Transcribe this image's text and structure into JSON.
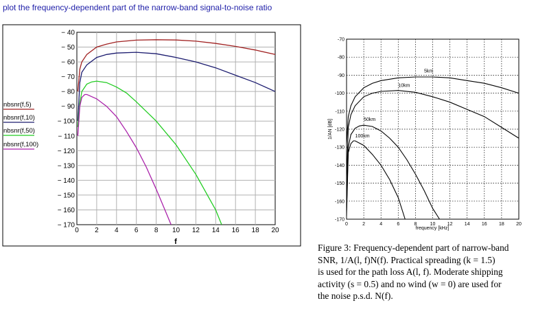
{
  "heading": "plot the frequency-dependent part of the narrow-band signal-to-noise ratio",
  "chart_data": [
    {
      "type": "line",
      "title": "",
      "xlabel": "f",
      "ylabel": "",
      "xlim": [
        0,
        20
      ],
      "ylim": [
        -170,
        -40
      ],
      "xticks": [
        0,
        2,
        4,
        6,
        8,
        10,
        12,
        14,
        16,
        18,
        20
      ],
      "yticks": [
        -40,
        -50,
        -60,
        -70,
        -80,
        -90,
        -100,
        -110,
        -120,
        -130,
        -140,
        -150,
        -160,
        -170
      ],
      "grid": true,
      "legend_position": "left",
      "series": [
        {
          "name": "nbsnr(f,5)",
          "color": "#a02020",
          "x": [
            0.1,
            0.3,
            0.5,
            1,
            2,
            3,
            4,
            6,
            8,
            10,
            12,
            14,
            16,
            18,
            20
          ],
          "y": [
            -80,
            -65,
            -60,
            -55,
            -50,
            -48,
            -46.5,
            -45.3,
            -45,
            -45.2,
            -46,
            -47.5,
            -49.5,
            -52,
            -55
          ]
        },
        {
          "name": "nbsnr(f,10)",
          "color": "#1a1a6e",
          "x": [
            0.1,
            0.3,
            0.5,
            1,
            2,
            3,
            4,
            6,
            8,
            10,
            12,
            14,
            16,
            18,
            20
          ],
          "y": [
            -100,
            -74,
            -67,
            -62,
            -57,
            -55,
            -54,
            -53.5,
            -54.5,
            -57,
            -60,
            -64,
            -69,
            -74,
            -80
          ]
        },
        {
          "name": "nbsnr(f,50)",
          "color": "#22cc22",
          "x": [
            0.1,
            0.3,
            0.5,
            1,
            1.5,
            2,
            3,
            4,
            5,
            6,
            8,
            10,
            12,
            14,
            14.6
          ],
          "y": [
            -104,
            -88,
            -80,
            -75,
            -73.5,
            -73,
            -74,
            -77,
            -81,
            -87,
            -100,
            -116,
            -136,
            -160,
            -170
          ]
        },
        {
          "name": "nbsnr(f,100)",
          "color": "#aa22aa",
          "x": [
            0.1,
            0.3,
            0.5,
            0.8,
            1,
            2,
            3,
            4,
            5,
            6,
            7,
            8,
            9,
            9.5
          ],
          "y": [
            -110,
            -90,
            -84,
            -82,
            -82,
            -85,
            -90,
            -97,
            -107,
            -118,
            -131,
            -146,
            -162,
            -170
          ]
        }
      ]
    },
    {
      "type": "line",
      "title": "",
      "xlabel": "frequency [kHz]",
      "ylabel": "1/AN [dB]",
      "xlim": [
        0,
        20
      ],
      "ylim": [
        -170,
        -70
      ],
      "xticks": [
        0,
        2,
        4,
        6,
        8,
        10,
        12,
        14,
        16,
        18,
        20
      ],
      "yticks": [
        -70,
        -80,
        -90,
        -100,
        -110,
        -120,
        -130,
        -140,
        -150,
        -160,
        -170
      ],
      "grid": true,
      "series": [
        {
          "name": "5km",
          "x": [
            0,
            0.2,
            0.5,
            1,
            2,
            3,
            4,
            6,
            8,
            10,
            12,
            14,
            16,
            18,
            20
          ],
          "y": [
            -128,
            -113,
            -107,
            -102,
            -97,
            -94.5,
            -93,
            -91.5,
            -91,
            -91,
            -91.5,
            -93,
            -94.5,
            -97,
            -100
          ]
        },
        {
          "name": "10km",
          "x": [
            0,
            0.2,
            0.5,
            1,
            2,
            3,
            4,
            6,
            8,
            10,
            12,
            14,
            16,
            18,
            20
          ],
          "y": [
            -150,
            -119,
            -112,
            -107,
            -102,
            -100,
            -99,
            -98.5,
            -99.5,
            -102,
            -105,
            -109,
            -113,
            -119,
            -125
          ]
        },
        {
          "name": "50km",
          "x": [
            0,
            0.2,
            0.5,
            1,
            1.5,
            2,
            3,
            4,
            5,
            6,
            7,
            8,
            9,
            10,
            10.8
          ],
          "y": [
            -165,
            -130,
            -123,
            -119.5,
            -118.2,
            -117.8,
            -118.5,
            -121,
            -125,
            -130,
            -137,
            -145,
            -154,
            -164,
            -170
          ]
        },
        {
          "name": "100km",
          "x": [
            0,
            0.2,
            0.5,
            0.8,
            1,
            2,
            3,
            4,
            5,
            6,
            6.8
          ],
          "y": [
            -168,
            -133,
            -128,
            -126.5,
            -126.5,
            -129,
            -134,
            -140,
            -148,
            -158,
            -170
          ]
        }
      ]
    }
  ],
  "caption": {
    "line1": "Figure 3:  Frequency-dependent part of narrow-band",
    "line2": "SNR, 1/A(l, f)N(f).  Practical spreading (k = 1.5)",
    "line3": "is used for the path loss A(l, f).  Moderate shipping",
    "line4": "activity (s = 0.5) and no wind (w = 0) are used for",
    "line5": "the noise p.s.d. N(f)."
  }
}
